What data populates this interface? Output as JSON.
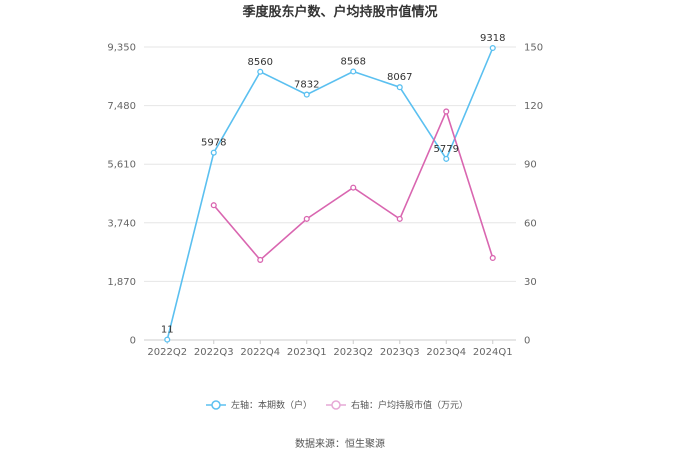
{
  "chart_data": {
    "type": "line",
    "title": "季度股东户数、户均持股市值情况",
    "categories": [
      "2022Q2",
      "2022Q3",
      "2022Q4",
      "2023Q1",
      "2023Q2",
      "2023Q3",
      "2023Q4",
      "2024Q1"
    ],
    "y_left": {
      "ticks": [
        "0",
        "1,870",
        "3,740",
        "5,610",
        "7,480",
        "9,350"
      ],
      "ylim": [
        0,
        9350
      ]
    },
    "y_right": {
      "ticks": [
        "0",
        "30",
        "60",
        "90",
        "120",
        "150"
      ],
      "ylim": [
        0,
        150
      ]
    },
    "series": [
      {
        "name": "左轴：本期数（户）",
        "axis": "left",
        "color": "#5bc0f0",
        "values": [
          11,
          5978,
          8560,
          7832,
          8568,
          8067,
          5779,
          9318
        ],
        "labels": [
          "11",
          "5978",
          "8560",
          "7832",
          "8568",
          "8067",
          "5779",
          "9318"
        ]
      },
      {
        "name": "右轴：户均持股市值（万元）",
        "axis": "right",
        "color": "#d966b0",
        "values": [
          null,
          69,
          41,
          62,
          78,
          62,
          117,
          42
        ]
      }
    ],
    "source": "数据来源：恒生聚源",
    "grid": true,
    "legend_position": "bottom"
  }
}
